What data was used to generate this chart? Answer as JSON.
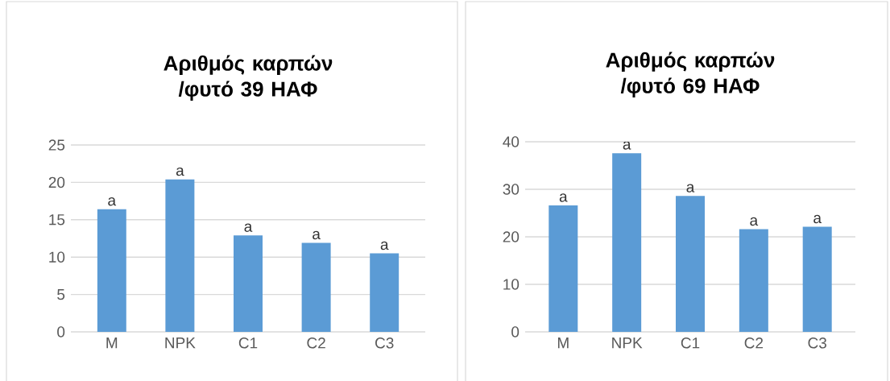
{
  "chart_data": [
    {
      "type": "bar",
      "title": "Αριθμός καρπών /φυτό 39 ΗΑΦ",
      "categories": [
        "M",
        "NPK",
        "C1",
        "C2",
        "C3"
      ],
      "values": [
        16.4,
        20.4,
        12.9,
        11.9,
        10.5
      ],
      "value_labels": [
        "a",
        "a",
        "a",
        "a",
        "a"
      ],
      "color": "#5b9bd5",
      "ylim": [
        0,
        25
      ],
      "yticks": [
        0,
        5,
        10,
        15,
        20,
        25
      ],
      "grid": "y"
    },
    {
      "type": "bar",
      "title": "Αριθμός καρπών /φυτό 69 ΗΑΦ",
      "categories": [
        "M",
        "NPK",
        "C1",
        "C2",
        "C3"
      ],
      "values": [
        26.6,
        37.6,
        28.6,
        21.6,
        22.1
      ],
      "value_labels": [
        "a",
        "a",
        "a",
        "a",
        "a"
      ],
      "color": "#5b9bd5",
      "ylim": [
        0,
        40
      ],
      "yticks": [
        0,
        10,
        20,
        30,
        40
      ],
      "grid": "y"
    }
  ]
}
